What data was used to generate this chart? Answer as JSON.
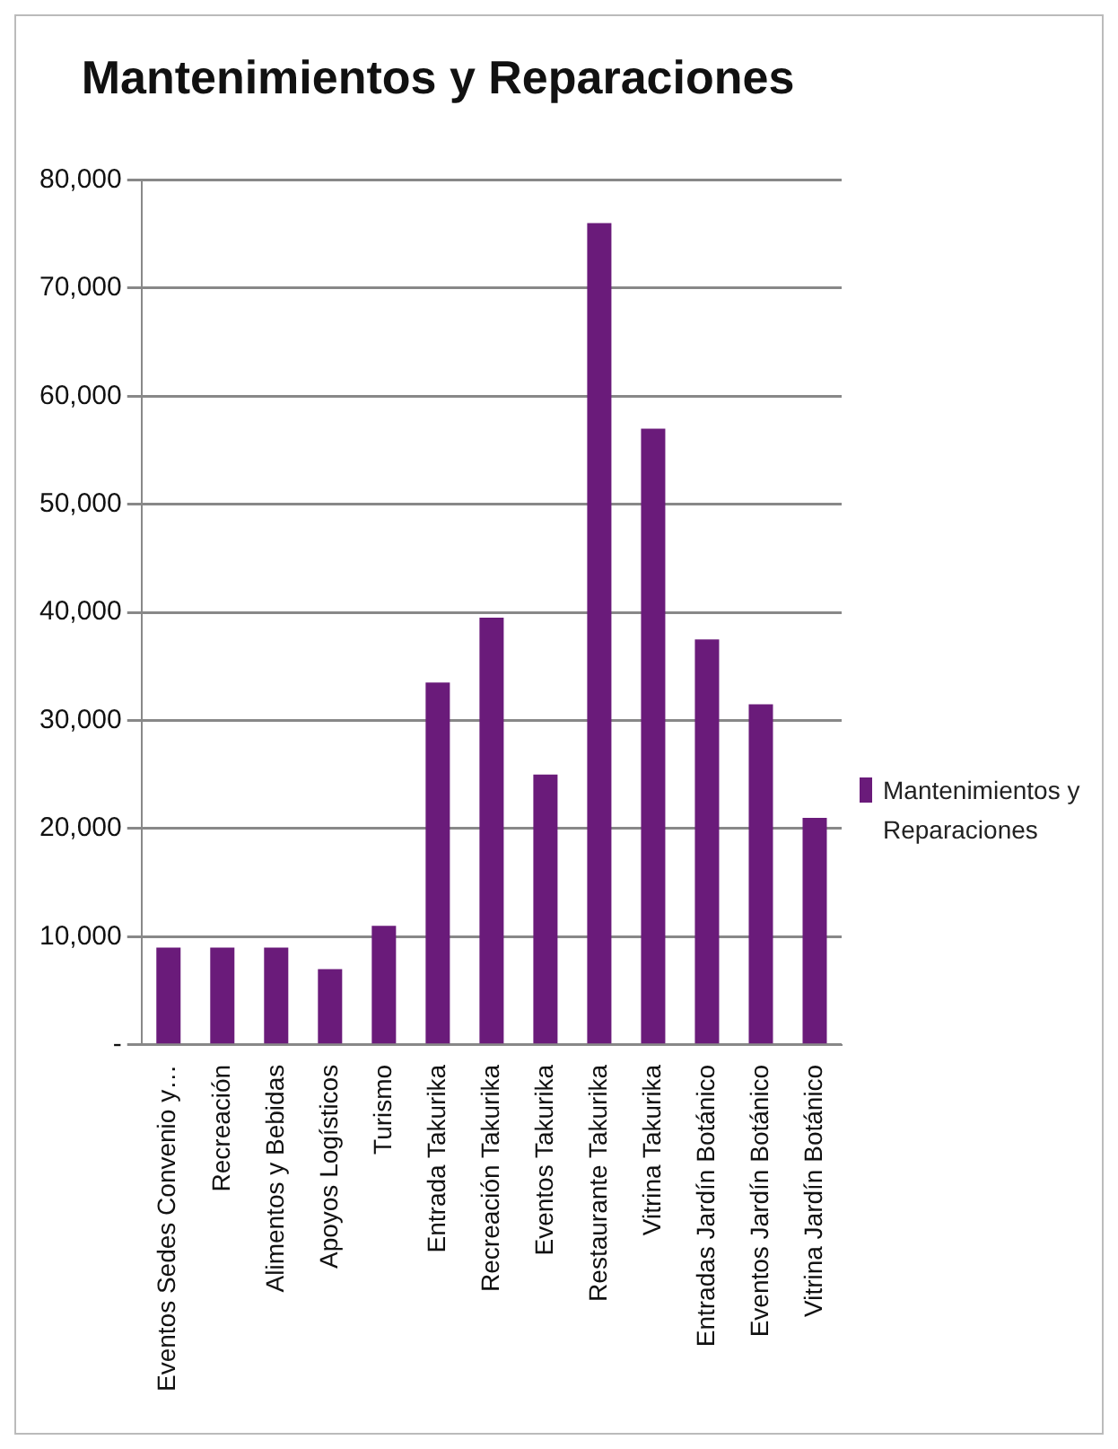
{
  "chart_data": {
    "type": "bar",
    "title": "Mantenimientos y Reparaciones",
    "categories": [
      "Eventos Sedes Convenio y…",
      "Recreación",
      "Alimentos y Bebidas",
      "Apoyos Logísticos",
      "Turismo",
      "Entrada Takurika",
      "Recreación Takurika",
      "Eventos Takurika",
      "Restaurante Takurika",
      "Vitrina Takurika",
      "Entradas Jardín Botánico",
      "Eventos Jardín Botánico",
      "Vitrina Jardín Botánico"
    ],
    "series": [
      {
        "name": "Mantenimientos y Reparaciones",
        "color": "#6a1b7a",
        "values": [
          9000,
          9000,
          9000,
          7000,
          11000,
          33500,
          39500,
          25000,
          76000,
          57000,
          37500,
          31500,
          21000
        ]
      }
    ],
    "ylim": [
      0,
      80000
    ],
    "yticks": [
      {
        "value": 0,
        "label": "-"
      },
      {
        "value": 10000,
        "label": "10,000"
      },
      {
        "value": 20000,
        "label": "20,000"
      },
      {
        "value": 30000,
        "label": "30,000"
      },
      {
        "value": 40000,
        "label": "40,000"
      },
      {
        "value": 50000,
        "label": "50,000"
      },
      {
        "value": 60000,
        "label": "60,000"
      },
      {
        "value": 70000,
        "label": "70,000"
      },
      {
        "value": 80000,
        "label": "80,000"
      }
    ],
    "grid": "y",
    "legend": "right"
  }
}
